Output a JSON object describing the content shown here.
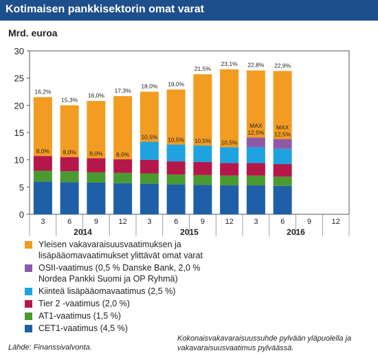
{
  "header": {
    "title": "Kotimaisen pankkisektorin omat varat"
  },
  "unit_label": "Mrd. euroa",
  "chart_data": {
    "type": "bar",
    "stacked": true,
    "categories": [
      "3",
      "6",
      "9",
      "12",
      "3",
      "6",
      "9",
      "12",
      "3",
      "6",
      "9",
      "12"
    ],
    "year_labels": [
      "2014",
      "2015",
      "2016"
    ],
    "ylim": [
      0,
      30
    ],
    "yticks": [
      0,
      5,
      10,
      15,
      20,
      25,
      30
    ],
    "grid": false,
    "series": [
      {
        "name": "CET1-vaatimus (4,5 %)",
        "color": "#1f5fa8",
        "values": [
          6.0,
          5.9,
          5.8,
          5.7,
          5.6,
          5.5,
          5.4,
          5.3,
          5.3,
          5.2,
          null,
          null
        ]
      },
      {
        "name": "AT1-vaatimus (1,5 %)",
        "color": "#4a9a32",
        "values": [
          2.0,
          2.0,
          1.9,
          1.9,
          1.9,
          1.8,
          1.8,
          1.8,
          1.8,
          1.7,
          null,
          null
        ]
      },
      {
        "name": "Tier 2 -vaatimus (2,0 %)",
        "color": "#b5174b",
        "values": [
          2.7,
          2.6,
          2.6,
          2.5,
          2.5,
          2.4,
          2.4,
          2.3,
          2.3,
          2.3,
          null,
          null
        ]
      },
      {
        "name": "Kiinteä lisäpääomavaatimus (2,5 %)",
        "color": "#1fa2e0",
        "values": [
          0,
          0,
          0,
          0,
          3.3,
          3.1,
          3.0,
          2.9,
          2.9,
          2.8,
          null,
          null
        ]
      },
      {
        "name": "OSII-vaatimus (0,5 % Danske Bank, 2,0 %\nNordea Pankki Suomi ja OP Ryhmä)",
        "color": "#8e5aa8",
        "values": [
          0,
          0,
          0,
          0,
          0,
          0,
          0,
          0,
          1.8,
          1.8,
          null,
          null
        ]
      },
      {
        "name": "Yleisen vakavaraisuusvaatimuksen ja\nlisäpääomavaatimukset ylittävät omat varat",
        "color": "#f39c22",
        "values": [
          10.8,
          9.5,
          10.5,
          11.6,
          9.2,
          10.1,
          13.1,
          14.3,
          12.3,
          12.5,
          null,
          null
        ]
      }
    ],
    "top_labels": [
      "16,2%",
      "15,3%",
      "16,0%",
      "17,3%",
      "18,0%",
      "19,0%",
      "21,5%",
      "23,1%",
      "22,8%",
      "22,9%",
      "",
      ""
    ],
    "requirement_labels": [
      "8,0%",
      "8,0%",
      "8,0%",
      "8,0%",
      "10,5%",
      "10,5%",
      "10,5%",
      "10,5%",
      "MAX\n12,5%",
      "MAX\n12,5%",
      "",
      ""
    ],
    "legend_placement": "bottom"
  },
  "source": "Lähde: Finanssivalvonta.",
  "note": "Kokonaisvakavaraisuussuhde pylvään yläpuolella ja vakavaraisuusvaatimus pylväässä."
}
